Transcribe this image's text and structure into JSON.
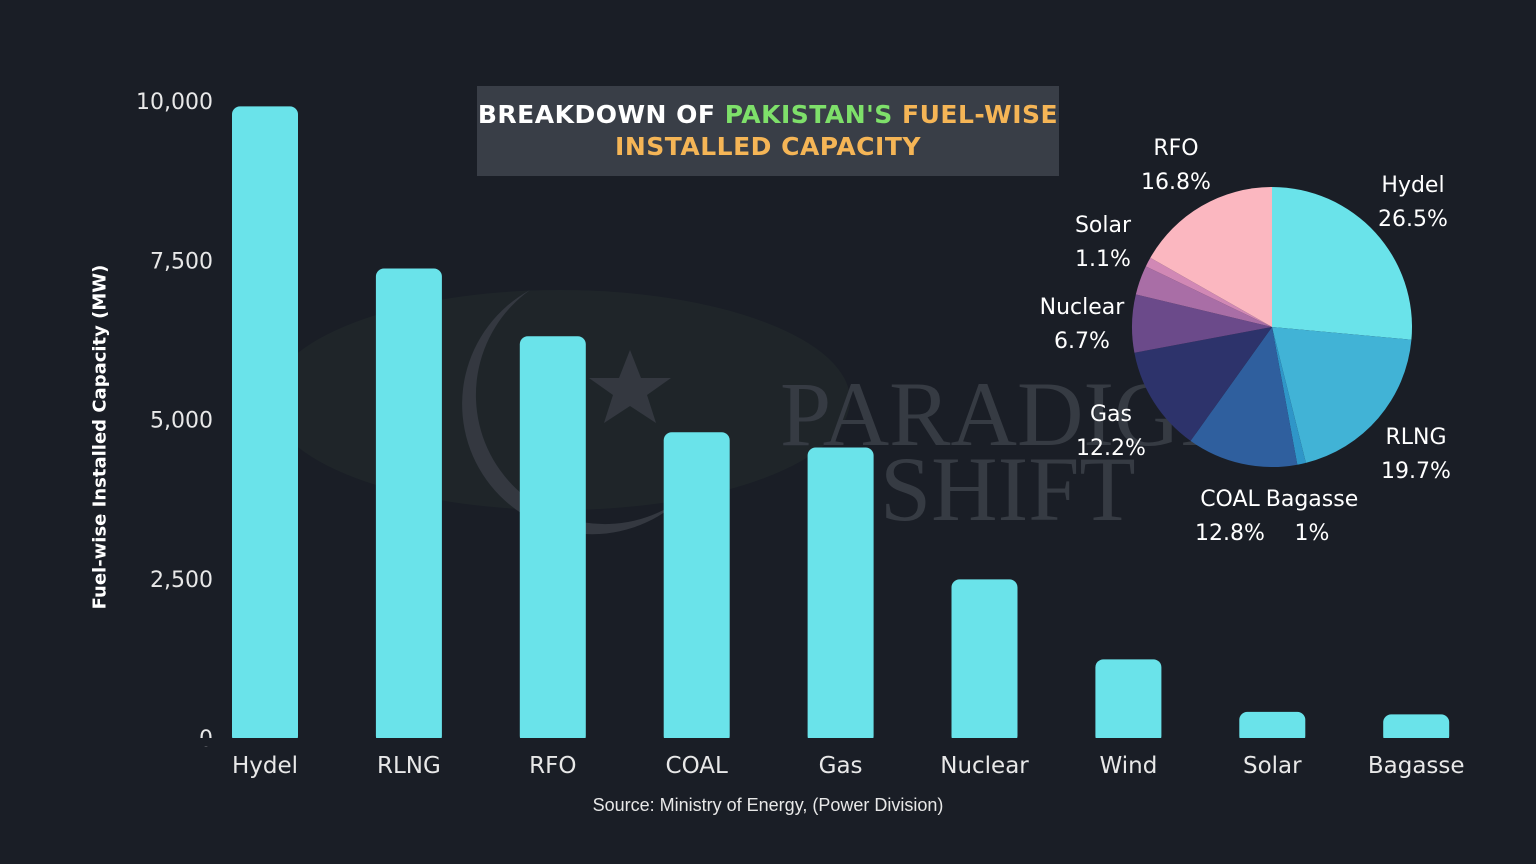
{
  "title": {
    "part1": "BREAKDOWN OF",
    "part2": "PAKISTAN'S",
    "part3": "FUEL-WISE",
    "part4": "INSTALLED CAPACITY"
  },
  "source": "Source: Ministry of Energy, (Power Division)",
  "watermark": {
    "line1": "PARADIGM",
    "line2": "SHIFT"
  },
  "chart_data": [
    {
      "type": "bar",
      "categories": [
        "Hydel",
        "RLNG",
        "RFO",
        "COAL",
        "Gas",
        "Nuclear",
        "Wind",
        "Solar",
        "Bagasse"
      ],
      "values": [
        9915,
        7370,
        6306,
        4800,
        4560,
        2490,
        1235,
        410,
        370
      ],
      "ylabel": "Fuel-wise Installed Capacity (MW)",
      "yticks": [
        "0",
        "2,500",
        "5,000",
        "7,500",
        "10,000"
      ],
      "ylim": [
        0,
        10000
      ],
      "grid": false,
      "bar_color": "#6ae3ea"
    },
    {
      "type": "pie",
      "slices": [
        {
          "label": "Hydel",
          "pct_label": "26.5%",
          "value": 26.5,
          "color": "#6ae3ea"
        },
        {
          "label": "RLNG",
          "pct_label": "19.7%",
          "value": 19.7,
          "color": "#41b3d6"
        },
        {
          "label": "Bagasse",
          "pct_label": "1%",
          "value": 1.0,
          "color": "#2f96c8"
        },
        {
          "label": "COAL",
          "pct_label": "12.8%",
          "value": 12.8,
          "color": "#2f5f9e"
        },
        {
          "label": "Gas",
          "pct_label": "12.2%",
          "value": 12.2,
          "color": "#2d336b"
        },
        {
          "label": "Nuclear",
          "pct_label": "6.7%",
          "value": 6.7,
          "color": "#6b4a8a"
        },
        {
          "label": "Wind",
          "pct_label": "",
          "value": 3.4,
          "color": "#a96ea6"
        },
        {
          "label": "Solar",
          "pct_label": "1.1%",
          "value": 1.1,
          "color": "#d188b5"
        },
        {
          "label": "RFO",
          "pct_label": "16.8%",
          "value": 16.8,
          "color": "#fbb7c0"
        }
      ]
    }
  ]
}
